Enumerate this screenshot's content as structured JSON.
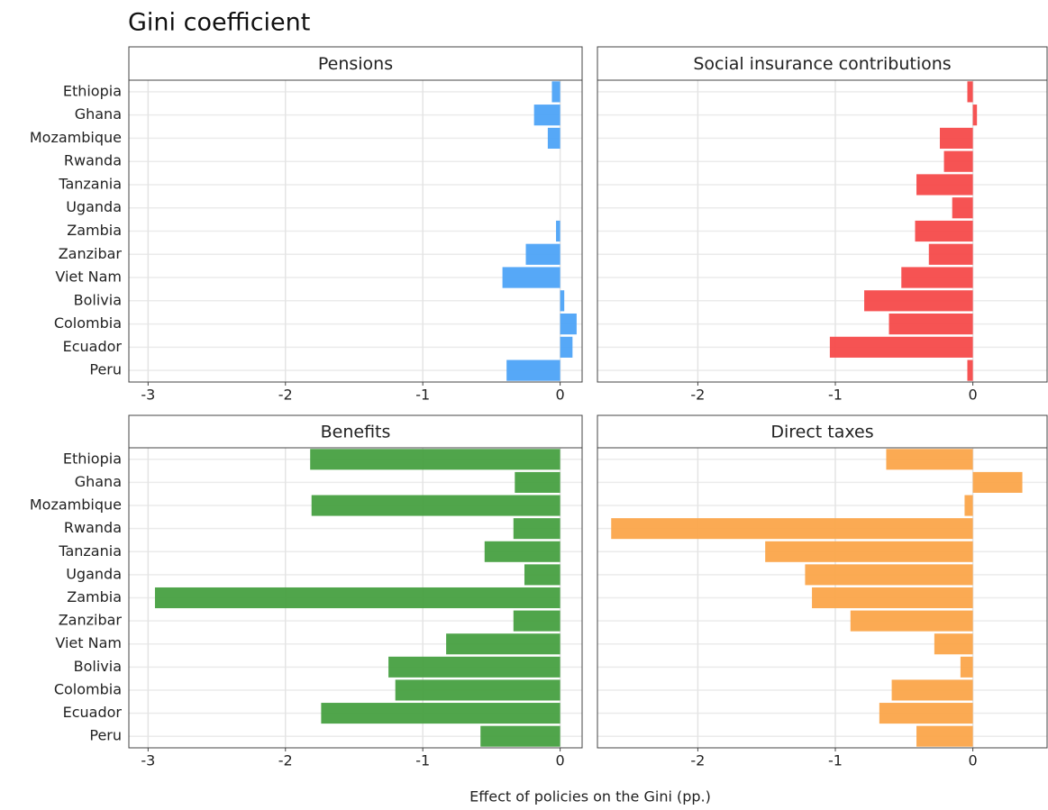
{
  "title": "Gini coefficient",
  "x_label": "Effect of policies on the Gini (pp.)",
  "chart_data": [
    {
      "type": "bar",
      "orientation": "horizontal",
      "title": "Pensions",
      "color": "#4da3f7",
      "categories": [
        "Ethiopia",
        "Ghana",
        "Mozambique",
        "Rwanda",
        "Tanzania",
        "Uganda",
        "Zambia",
        "Zanzibar",
        "Viet Nam",
        "Bolivia",
        "Colombia",
        "Ecuador",
        "Peru"
      ],
      "values": [
        -0.06,
        -0.19,
        -0.09,
        0,
        0,
        0,
        -0.03,
        -0.25,
        -0.42,
        0.03,
        0.12,
        0.09,
        -0.39
      ],
      "xlim": [
        -3.14,
        0.16
      ],
      "xticks": [
        -3,
        -2,
        -1,
        0
      ],
      "grid": true
    },
    {
      "type": "bar",
      "orientation": "horizontal",
      "title": "Social insurance contributions",
      "color": "#f54a4a",
      "values": [
        -0.04,
        0.03,
        -0.24,
        -0.21,
        -0.41,
        -0.15,
        -0.42,
        -0.32,
        -0.52,
        -0.79,
        -0.61,
        -1.04,
        -0.04
      ],
      "xlim": [
        -2.73,
        0.54
      ],
      "xticks": [
        -2,
        -1,
        0
      ],
      "grid": true
    },
    {
      "type": "bar",
      "orientation": "horizontal",
      "title": "Benefits",
      "color": "#47a041",
      "categories": [
        "Ethiopia",
        "Ghana",
        "Mozambique",
        "Rwanda",
        "Tanzania",
        "Uganda",
        "Zambia",
        "Zanzibar",
        "Viet Nam",
        "Bolivia",
        "Colombia",
        "Ecuador",
        "Peru"
      ],
      "values": [
        -1.82,
        -0.33,
        -1.81,
        -0.34,
        -0.55,
        -0.26,
        -2.95,
        -0.34,
        -0.83,
        -1.25,
        -1.2,
        -1.74,
        -0.58
      ],
      "xlim": [
        -3.14,
        0.16
      ],
      "xticks": [
        -3,
        -2,
        -1,
        0
      ],
      "grid": true
    },
    {
      "type": "bar",
      "orientation": "horizontal",
      "title": "Direct taxes",
      "color": "#fba54a",
      "values": [
        -0.63,
        0.36,
        -0.06,
        -2.63,
        -1.51,
        -1.22,
        -1.17,
        -0.89,
        -0.28,
        -0.09,
        -0.59,
        -0.68,
        -0.41
      ],
      "xlim": [
        -2.73,
        0.54
      ],
      "xticks": [
        -2,
        -1,
        0
      ],
      "grid": true
    }
  ]
}
